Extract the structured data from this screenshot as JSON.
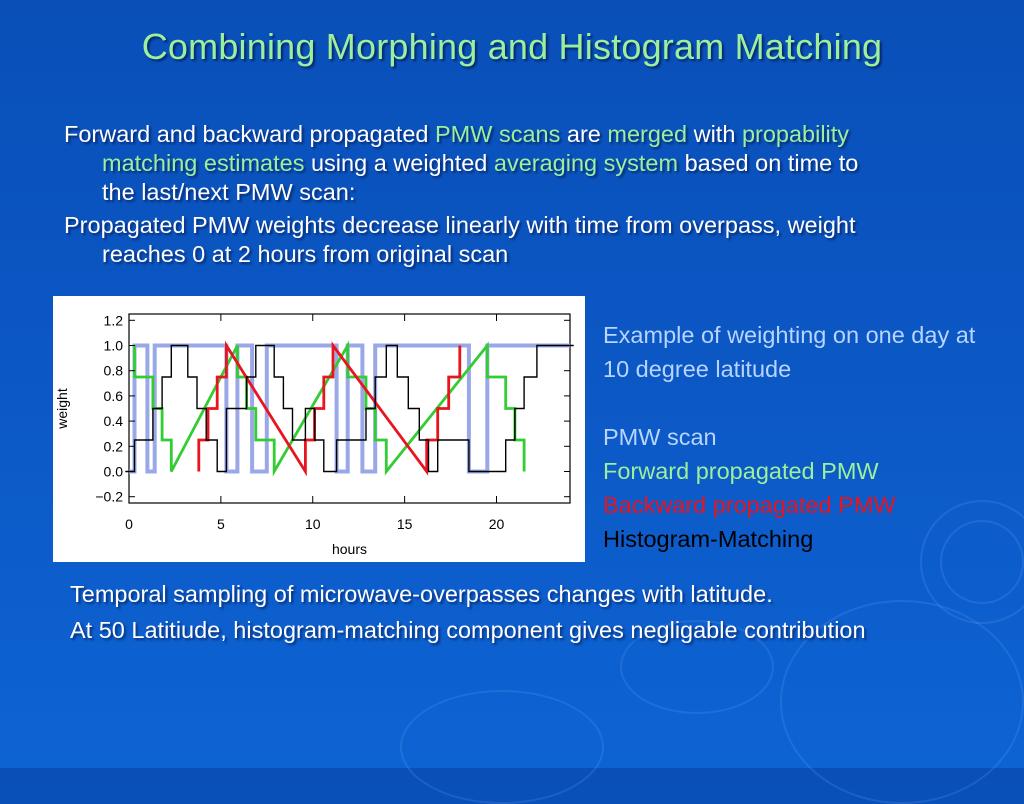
{
  "slide": {
    "title": "Combining Morphing and Histogram Matching",
    "bullets": [
      {
        "segments": [
          {
            "text": "Forward and backward propagated ",
            "highlight": false
          },
          {
            "text": "PMW scans",
            "highlight": true
          },
          {
            "text": " are ",
            "highlight": false
          },
          {
            "text": "merged",
            "highlight": true
          },
          {
            "text": " with ",
            "highlight": false
          },
          {
            "text": "propability matching estimates",
            "highlight": true
          },
          {
            "text": " using a weighted ",
            "highlight": false
          },
          {
            "text": "averaging system",
            "highlight": true
          },
          {
            "text": " based on time to the last/next PMW scan:",
            "highlight": false
          }
        ]
      },
      {
        "segments": [
          {
            "text": "Propagated PMW weights decrease linearly with time from overpass, weight reaches 0 at 2 hours from original scan",
            "highlight": false
          }
        ]
      }
    ],
    "legend": {
      "description": "Example of weighting on one day at 10 degree latitude",
      "items": [
        {
          "label": "PMW scan",
          "color": "#b8d4ff"
        },
        {
          "label": "Forward propagated PMW",
          "color": "#9cf09c"
        },
        {
          "label": "Backward propagated PMW",
          "color": "#e8141e"
        },
        {
          "label": "Histogram-Matching",
          "color": "#000000"
        }
      ]
    },
    "footer": [
      "Temporal sampling of microwave-overpasses changes with latitude.",
      "At 50 Latitiude, histogram-matching component gives negligable contribution"
    ],
    "colors": {
      "background": "#0b57c4",
      "title": "#9cf09c",
      "highlight": "#9cf09c"
    }
  },
  "chart_data": {
    "type": "line",
    "xlabel": "hours",
    "ylabel": "weight",
    "xlim": [
      0,
      24
    ],
    "ylim": [
      -0.25,
      1.25
    ],
    "xticks": [
      "0",
      "5",
      "10",
      "15",
      "20"
    ],
    "yticks": [
      "1.2",
      "1.0",
      "0.8",
      "0.6",
      "0.4",
      "0.2",
      "0.0",
      "−0.2"
    ],
    "grid": false,
    "series": [
      {
        "name": "PMW scan",
        "color": "#9aa8e8",
        "x": [
          0,
          0.3,
          0.3,
          1.0,
          1.0,
          1.4,
          1.4,
          5.3,
          5.3,
          5.9,
          5.9,
          6.7,
          6.7,
          7.5,
          7.5,
          11.3,
          11.3,
          11.9,
          11.9,
          12.7,
          12.7,
          13.4,
          13.4,
          18.5,
          18.5,
          19.5,
          19.5,
          24
        ],
        "y": [
          0,
          0,
          1,
          1,
          0,
          0,
          1,
          1,
          0,
          0,
          1,
          1,
          0,
          0,
          1,
          1,
          0,
          0,
          1,
          1,
          0,
          0,
          1,
          1,
          0,
          0,
          1,
          1
        ]
      },
      {
        "name": "Forward propagated PMW",
        "color": "#33cc33",
        "x": [
          0.3,
          0.3,
          1.3,
          1.3,
          1.8,
          1.8,
          2.3,
          2.3,
          5.9,
          5.9,
          6.4,
          6.4,
          6.9,
          6.9,
          7.9,
          7.9,
          11.9,
          11.9,
          12.9,
          12.9,
          13.4,
          13.4,
          14.0,
          14.0,
          19.5,
          19.5,
          20.5,
          20.5,
          21.0,
          21.0,
          21.5,
          21.5
        ],
        "y": [
          1,
          0.75,
          0.75,
          0.5,
          0.5,
          0.25,
          0.25,
          0,
          1,
          0.75,
          0.75,
          0.5,
          0.5,
          0.25,
          0.25,
          0,
          1,
          0.75,
          0.75,
          0.5,
          0.5,
          0.25,
          0.25,
          0,
          1,
          0.75,
          0.75,
          0.5,
          0.5,
          0.25,
          0.25,
          0
        ]
      },
      {
        "name": "Backward propagated PMW",
        "color": "#e8141e",
        "x": [
          3.8,
          3.8,
          4.3,
          4.3,
          4.8,
          4.8,
          5.3,
          5.3,
          9.6,
          9.6,
          10.1,
          10.1,
          10.6,
          10.6,
          11.1,
          11.1,
          16.2,
          16.2,
          16.8,
          16.8,
          17.4,
          17.4,
          18.0,
          18.0
        ],
        "y": [
          0,
          0.25,
          0.25,
          0.5,
          0.5,
          0.75,
          0.75,
          1,
          0,
          0.25,
          0.25,
          0.5,
          0.5,
          0.75,
          0.75,
          1,
          0,
          0.25,
          0.25,
          0.5,
          0.5,
          0.75,
          0.75,
          1
        ]
      },
      {
        "name": "Histogram-Matching",
        "color": "#000000",
        "x": [
          -0.2,
          0.3,
          0.3,
          1.3,
          1.3,
          1.8,
          1.8,
          2.3,
          2.3,
          3.2,
          3.2,
          3.7,
          3.7,
          4.2,
          4.2,
          4.8,
          4.8,
          5.3,
          5.3,
          6.4,
          6.4,
          6.9,
          6.9,
          7.9,
          7.9,
          8.4,
          8.4,
          8.9,
          8.9,
          9.6,
          9.6,
          10.1,
          10.1,
          10.6,
          10.6,
          11.3,
          11.3,
          12.9,
          12.9,
          13.4,
          13.4,
          14.0,
          14.0,
          14.6,
          14.6,
          15.2,
          15.2,
          15.8,
          15.8,
          16.3,
          16.3,
          16.8,
          16.8,
          18.5,
          18.5,
          20.5,
          20.5,
          21.0,
          21.0,
          21.5,
          21.5,
          22.2,
          22.2,
          23.0,
          23.0,
          24.2
        ],
        "y": [
          0,
          0,
          0.25,
          0.25,
          0.5,
          0.5,
          0.75,
          0.75,
          1.0,
          1.0,
          0.75,
          0.75,
          0.5,
          0.5,
          0.25,
          0.25,
          0,
          0,
          0.5,
          0.5,
          0.75,
          0.75,
          1.0,
          1.0,
          0.75,
          0.75,
          0.5,
          0.5,
          0.25,
          0.25,
          0.5,
          0.5,
          0.25,
          0.25,
          0,
          0,
          0.25,
          0.25,
          0.5,
          0.5,
          0.75,
          0.75,
          1.0,
          1.0,
          0.75,
          0.75,
          0.5,
          0.5,
          0.25,
          0.25,
          0,
          0,
          0.25,
          0.25,
          0,
          0,
          0.25,
          0.25,
          0.5,
          0.5,
          0.75,
          0.75,
          1.0,
          1.0,
          1.0,
          1.0
        ]
      }
    ]
  }
}
